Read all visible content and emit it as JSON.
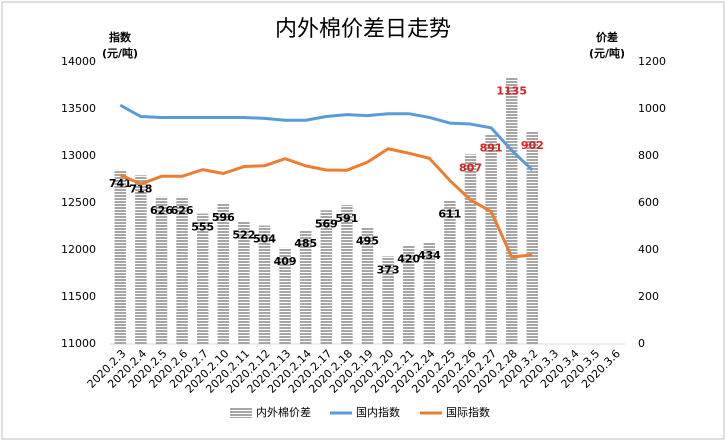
{
  "chart_data": {
    "type": "combo",
    "title": "内外棉价差日走势",
    "y_label": [
      "指数",
      "(元/吨)"
    ],
    "y2_label": [
      "价差",
      "(元/吨)"
    ],
    "categories": [
      "2020.2.3",
      "2020.2.4",
      "2020.2.5",
      "2020.2.6",
      "2020.2.7",
      "2020.2.10",
      "2020.2.11",
      "2020.2.12",
      "2020.2.13",
      "2020.2.14",
      "2020.2.17",
      "2020.2.18",
      "2020.2.19",
      "2020.2.20",
      "2020.2.21",
      "2020.2.24",
      "2020.2.25",
      "2020.2.26",
      "2020.2.27",
      "2020.2.28",
      "2020.3.2",
      "2020.3.3",
      "2020.3.4",
      "2020.3.5",
      "2020.3.6"
    ],
    "ylim": [
      11000,
      14000
    ],
    "yticks": [
      11000,
      11500,
      12000,
      12500,
      13000,
      13500,
      14000
    ],
    "y2lim": [
      0,
      1200
    ],
    "y2ticks": [
      0,
      200,
      400,
      600,
      800,
      1000,
      1200
    ],
    "series": [
      {
        "name": "内外棉价差",
        "type": "bar",
        "axis": "y2",
        "color": "#a6a6a6",
        "values": [
          741,
          718,
          626,
          626,
          555,
          596,
          522,
          504,
          409,
          485,
          569,
          591,
          495,
          373,
          420,
          434,
          611,
          807,
          891,
          1135,
          902,
          null,
          null,
          null,
          null
        ],
        "label_colors": [
          "#000",
          "#000",
          "#000",
          "#000",
          "#000",
          "#000",
          "#000",
          "#000",
          "#000",
          "#000",
          "#000",
          "#000",
          "#000",
          "#000",
          "#000",
          "#000",
          "#000",
          "#e02020",
          "#e02020",
          "#e02020",
          "#e02020",
          null,
          null,
          null,
          null
        ]
      },
      {
        "name": "国内指数",
        "type": "line",
        "color": "#5b9bd5",
        "values": [
          13540,
          13420,
          13410,
          13410,
          13410,
          13410,
          13410,
          13400,
          13380,
          13380,
          13420,
          13440,
          13430,
          13450,
          13450,
          13410,
          13350,
          13340,
          13300,
          13060,
          12850,
          null,
          null,
          null,
          null
        ]
      },
      {
        "name": "国际指数",
        "type": "line",
        "color": "#ed7d31",
        "values": [
          12799,
          12702,
          12784,
          12784,
          12855,
          12814,
          12888,
          12896,
          12971,
          12895,
          12851,
          12849,
          12935,
          13077,
          13030,
          12976,
          12739,
          12533,
          12409,
          11925,
          11948,
          null,
          null,
          null,
          null
        ]
      }
    ]
  }
}
